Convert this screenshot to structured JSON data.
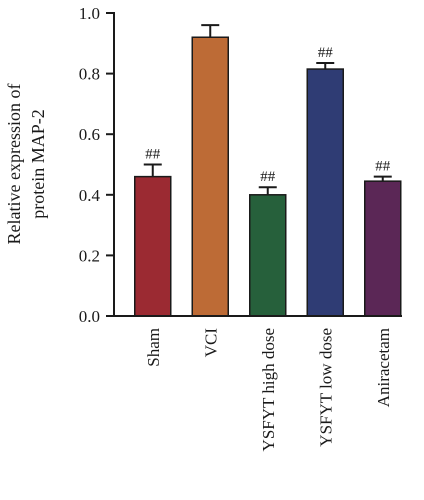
{
  "chart_data": {
    "type": "bar",
    "title": "",
    "xlabel": "",
    "ylabel_lines": [
      "Relative expression of",
      "protein MAP-2"
    ],
    "ylim": [
      0,
      1.0
    ],
    "yticks": [
      "0.0",
      "0.2",
      "0.4",
      "0.6",
      "0.8",
      "1.0"
    ],
    "ytick_values": [
      0,
      0.2,
      0.4,
      0.6,
      0.8,
      1.0
    ],
    "categories": [
      "Sham",
      "VCI",
      "YSFYT high dose",
      "YSFYT low dose",
      "Aniracetam"
    ],
    "values": [
      0.46,
      0.92,
      0.4,
      0.815,
      0.445
    ],
    "errors": [
      0.04,
      0.04,
      0.025,
      0.02,
      0.015
    ],
    "annotations": [
      "##",
      "",
      "##",
      "##",
      "##"
    ],
    "colors": [
      "#9b2a32",
      "#bd6b36",
      "#26603b",
      "#2f3c74",
      "#5b2756"
    ],
    "grid": false
  }
}
